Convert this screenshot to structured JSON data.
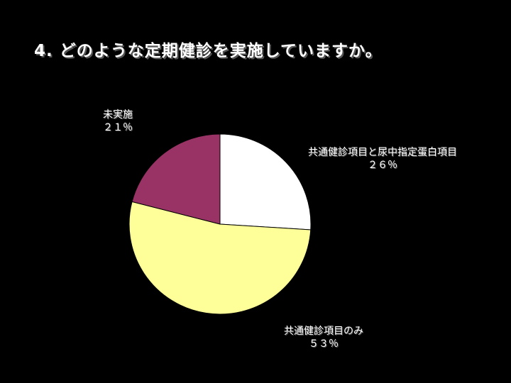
{
  "title": "4. どのような定期健診を実施していますか。",
  "chart_data": {
    "type": "pie",
    "title": "4. どのような定期健診を実施していますか。",
    "start_angle_deg": 0,
    "direction": "clockwise",
    "slices": [
      {
        "label": "共通健診項目と尿中指定蛋白項目",
        "value": 26,
        "value_text": "26%",
        "color": "#ffffff"
      },
      {
        "label": "共通健診項目のみ",
        "value": 53,
        "value_text": "53%",
        "color": "#ffff99"
      },
      {
        "label": "未実施",
        "value": 21,
        "value_text": "21%",
        "color": "#993366"
      }
    ]
  },
  "labels": [
    {
      "name": "共通健診項目と尿中指定蛋白項目",
      "pct": "２６％"
    },
    {
      "name": "共通健診項目のみ",
      "pct": "５３％"
    },
    {
      "name": "未実施",
      "pct": "２１％"
    }
  ]
}
